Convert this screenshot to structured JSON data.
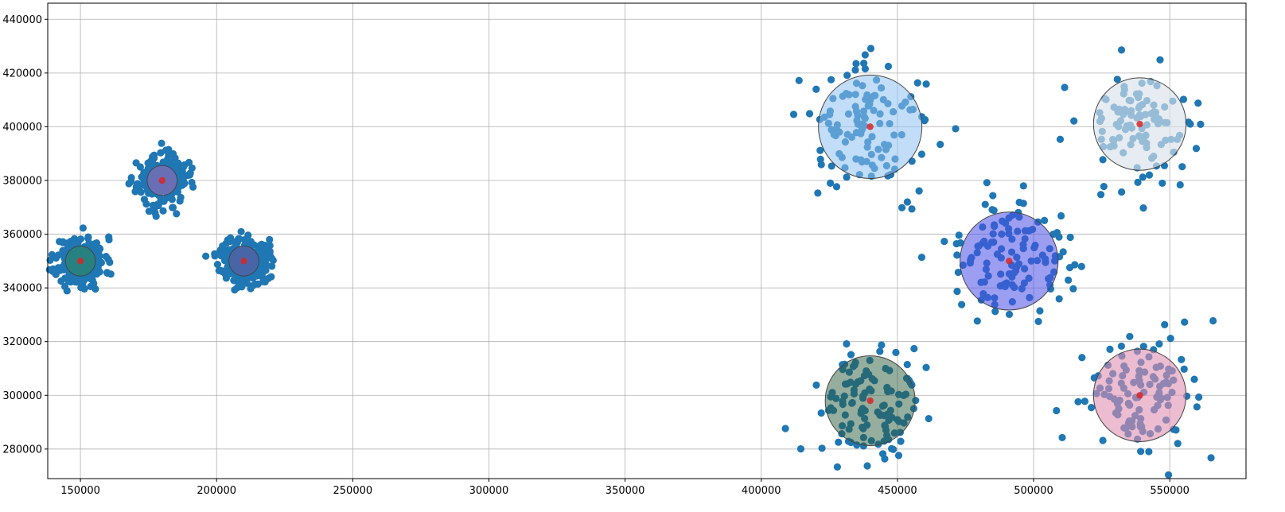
{
  "chart_data": {
    "type": "scatter",
    "title": "",
    "xlabel": "",
    "ylabel": "",
    "xlim": [
      138000,
      578000
    ],
    "ylim": [
      269000,
      446000
    ],
    "grid": true,
    "x_ticks": [
      150000,
      200000,
      250000,
      300000,
      350000,
      400000,
      450000,
      500000,
      550000
    ],
    "y_ticks": [
      280000,
      300000,
      320000,
      340000,
      360000,
      380000,
      400000,
      420000,
      440000
    ],
    "x_tick_labels": [
      "150000",
      "200000",
      "250000",
      "300000",
      "350000",
      "400000",
      "450000",
      "500000",
      "550000"
    ],
    "y_tick_labels": [
      "280000",
      "300000",
      "320000",
      "340000",
      "360000",
      "380000",
      "400000",
      "420000",
      "440000"
    ],
    "point_color": "#1f77b4",
    "center_color": "#d62728",
    "clusters": [
      {
        "center": [
          150000,
          350000
        ],
        "spread": 4500,
        "n": 260,
        "circle_radius": 5500,
        "circle_color": "#2e8b57",
        "circle_alpha": 0.55,
        "seed": 11
      },
      {
        "center": [
          180000,
          380000
        ],
        "spread": 4500,
        "n": 260,
        "circle_radius": 5500,
        "circle_color": "#9b6bb5",
        "circle_alpha": 0.6,
        "seed": 23
      },
      {
        "center": [
          210000,
          350000
        ],
        "spread": 4500,
        "n": 260,
        "circle_radius": 5500,
        "circle_color": "#6a5a9c",
        "circle_alpha": 0.55,
        "seed": 37
      },
      {
        "center": [
          440000,
          400000
        ],
        "spread": 12000,
        "n": 120,
        "circle_radius": 19000,
        "circle_color": "#8ec1f0",
        "circle_alpha": 0.55,
        "seed": 41
      },
      {
        "center": [
          539000,
          401000
        ],
        "spread": 11000,
        "n": 110,
        "circle_radius": 17000,
        "circle_color": "#d8e2ea",
        "circle_alpha": 0.65,
        "seed": 53
      },
      {
        "center": [
          491000,
          350000
        ],
        "spread": 11000,
        "n": 120,
        "circle_radius": 18000,
        "circle_color": "#4a4ee8",
        "circle_alpha": 0.55,
        "seed": 67
      },
      {
        "center": [
          440000,
          298000
        ],
        "spread": 10000,
        "n": 120,
        "circle_radius": 16500,
        "circle_color": "#2e5e3e",
        "circle_alpha": 0.5,
        "seed": 79
      },
      {
        "center": [
          539000,
          300000
        ],
        "spread": 11000,
        "n": 110,
        "circle_radius": 17000,
        "circle_color": "#e090b0",
        "circle_alpha": 0.6,
        "seed": 83
      }
    ]
  }
}
